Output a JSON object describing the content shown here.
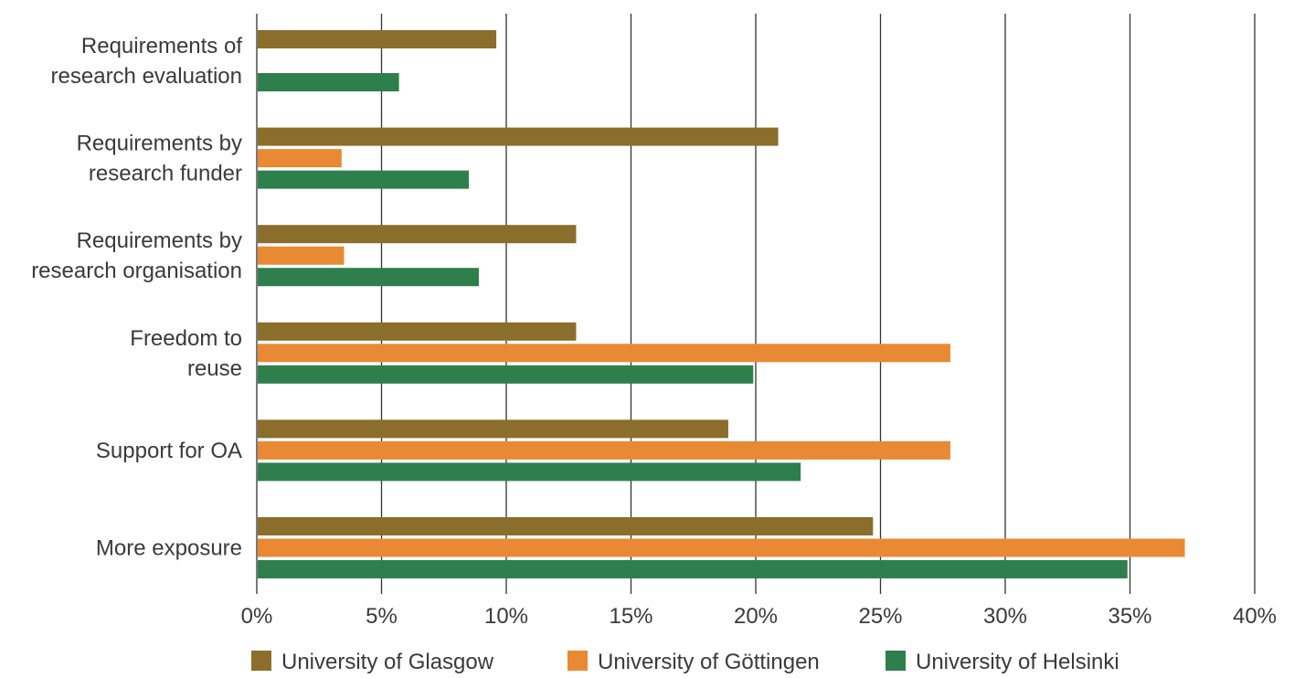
{
  "chart_data": {
    "type": "bar",
    "orientation": "horizontal",
    "categories": [
      [
        "Requirements of",
        "research evaluation"
      ],
      [
        "Requirements by",
        "research funder"
      ],
      [
        "Requirements by",
        "research organisation"
      ],
      [
        "Freedom to",
        "reuse"
      ],
      [
        "Support for OA"
      ],
      [
        "More exposure"
      ]
    ],
    "series": [
      {
        "name": "University of Glasgow",
        "color": "#8b6d2c",
        "values": [
          9.6,
          20.9,
          12.8,
          12.8,
          18.9,
          24.7
        ]
      },
      {
        "name": "University of Göttingen",
        "color": "#e88a34",
        "values": [
          null,
          3.4,
          3.5,
          27.8,
          27.8,
          37.2
        ]
      },
      {
        "name": "University of Helsinki",
        "color": "#2f7f4c",
        "values": [
          5.7,
          8.5,
          8.9,
          19.9,
          21.8,
          34.9
        ]
      }
    ],
    "xlim": [
      0,
      40
    ],
    "xticks": [
      "0%",
      "5%",
      "10%",
      "15%",
      "20%",
      "25%",
      "30%",
      "35%",
      "40%"
    ],
    "grid": true,
    "legend_position": "bottom"
  }
}
